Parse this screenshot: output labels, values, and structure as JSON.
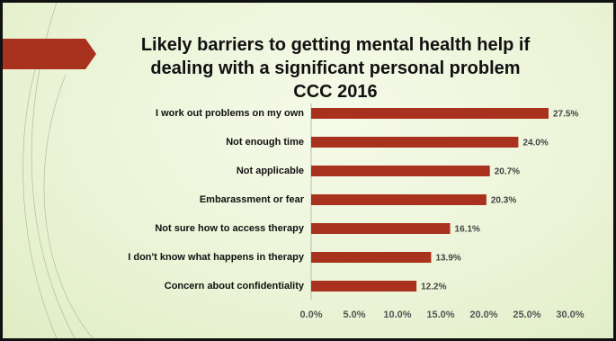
{
  "chart_data": {
    "type": "barh",
    "title": "Likely barriers to getting mental health help if dealing with a significant personal problem",
    "subtitle": "CCC 2016",
    "categories": [
      "I work out problems on my own",
      "Not enough time",
      "Not applicable",
      "Embarassment or fear",
      "Not sure how to access therapy",
      "I don't know what happens in therapy",
      "Concern about confidentiality"
    ],
    "values": [
      27.5,
      24.0,
      20.7,
      20.3,
      16.1,
      13.9,
      12.2
    ],
    "value_labels": [
      "27.5%",
      "24.0%",
      "20.7%",
      "20.3%",
      "16.1%",
      "13.9%",
      "12.2%"
    ],
    "color": "#a8321e",
    "xlim": [
      0,
      30
    ],
    "xticks": [
      {
        "value": 0,
        "label": "0.0%"
      },
      {
        "value": 5,
        "label": "5.0%"
      },
      {
        "value": 10,
        "label": "10.0%"
      },
      {
        "value": 15,
        "label": "15.0%"
      },
      {
        "value": 20,
        "label": "20.0%"
      },
      {
        "value": 25,
        "label": "25.0%"
      },
      {
        "value": 30,
        "label": "30.0%"
      }
    ],
    "grid": false
  }
}
